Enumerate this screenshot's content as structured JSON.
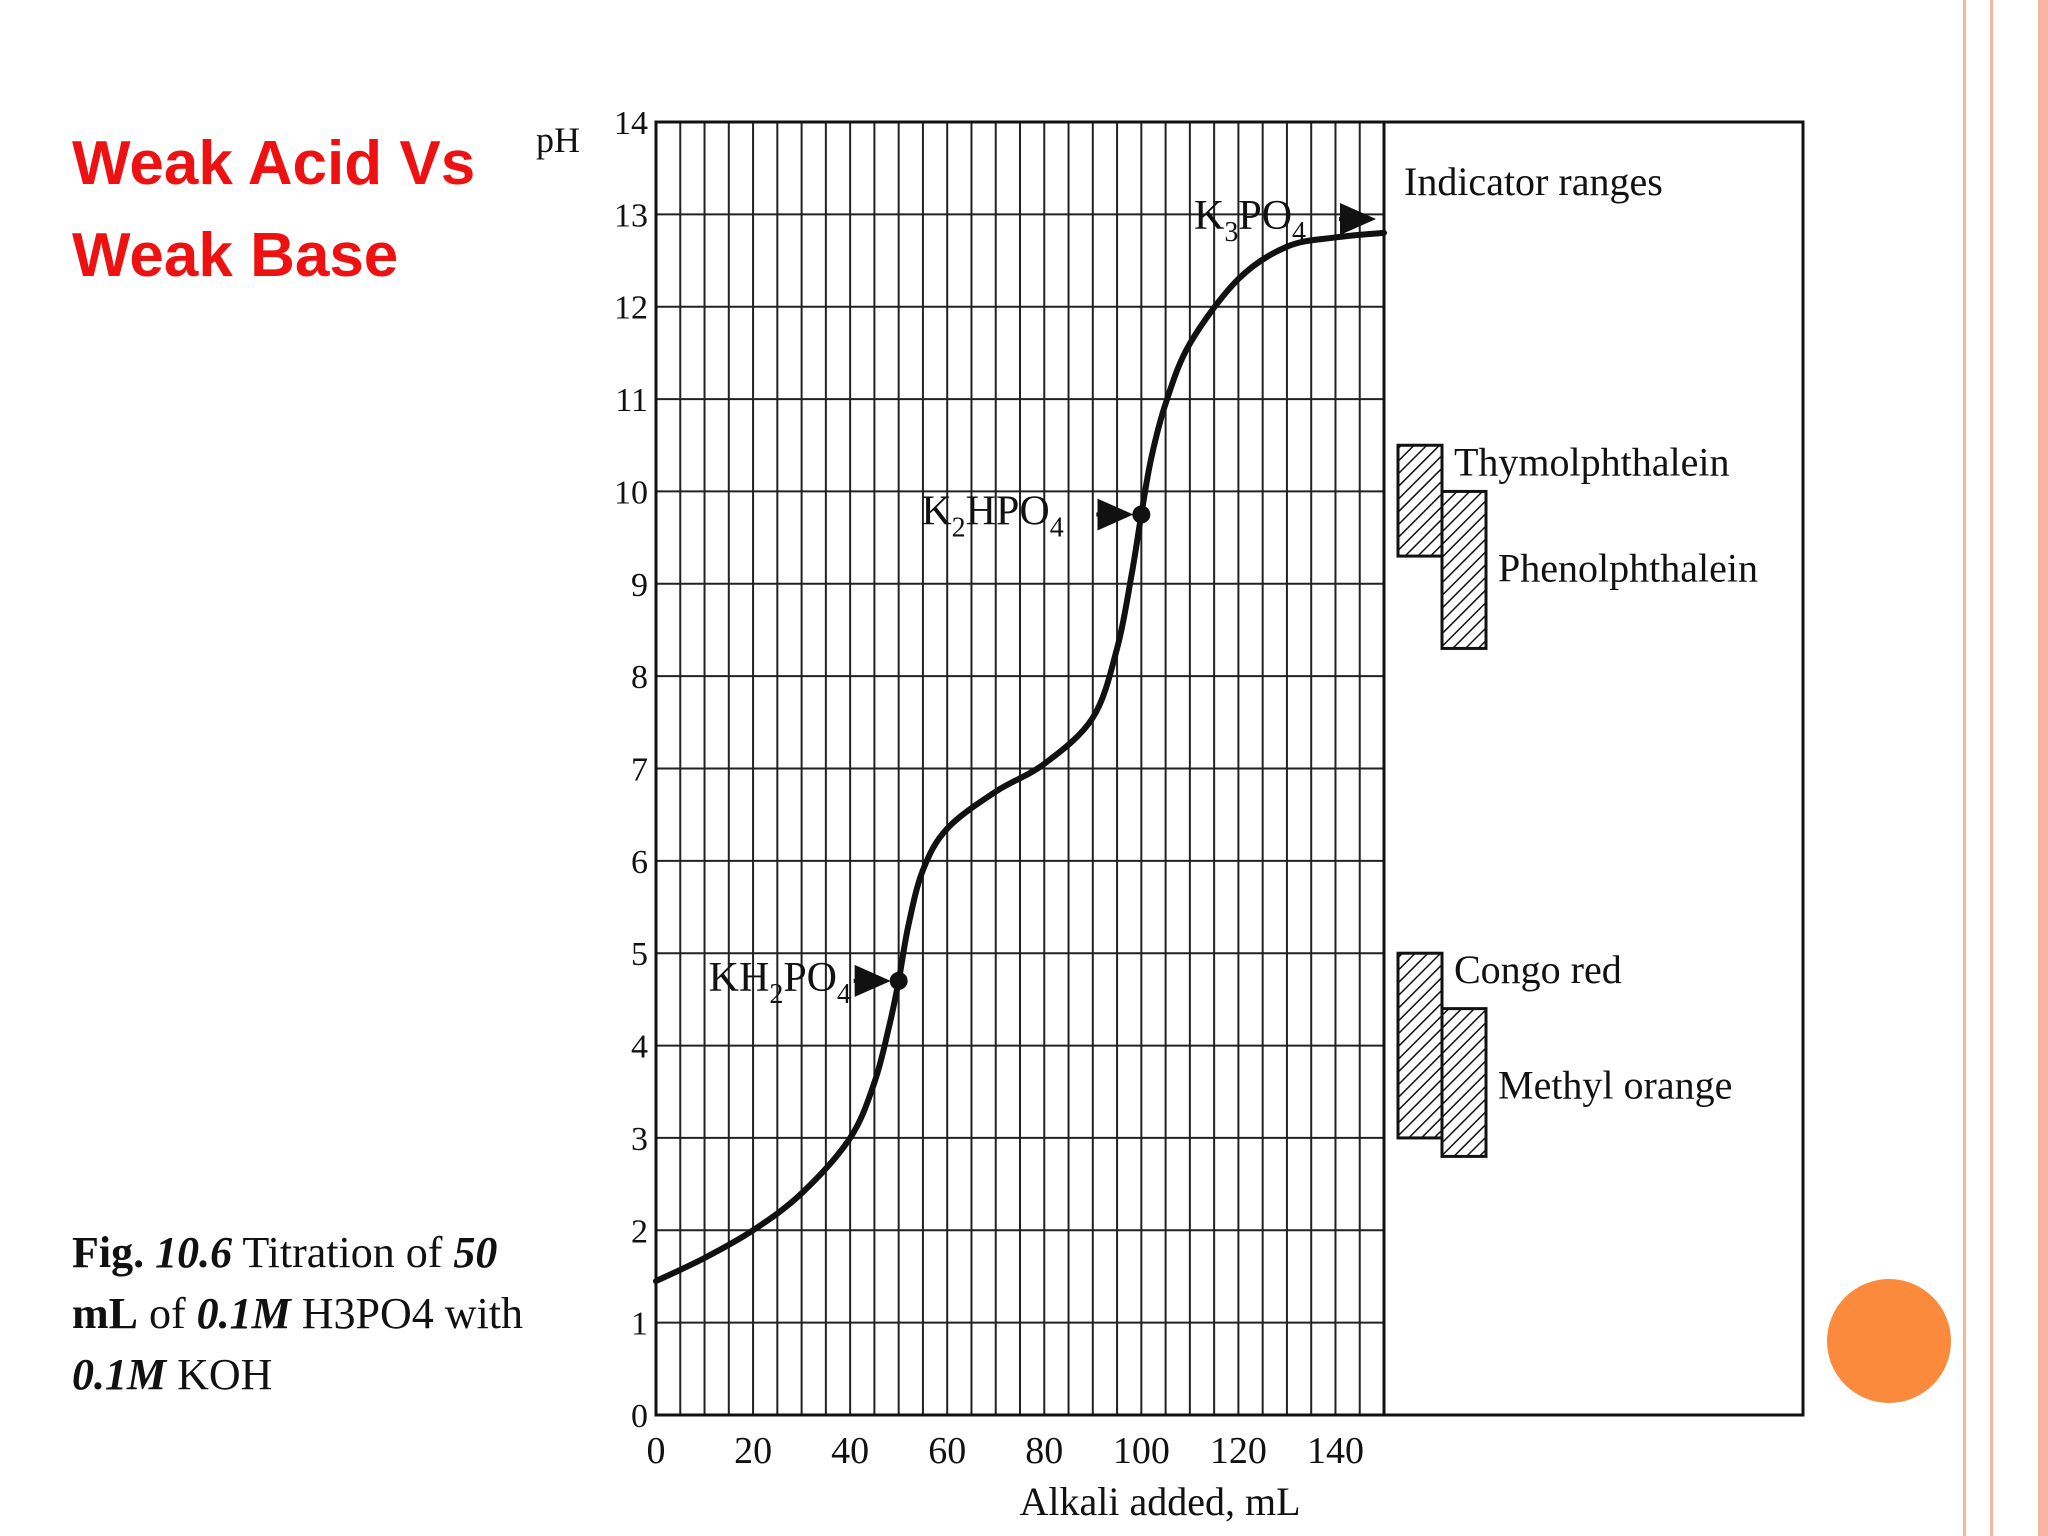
{
  "slide": {
    "title_line1": "Weak Acid Vs",
    "title_line2": "Weak Base",
    "title_color": "#ee1111",
    "accent_color": "#fb8a3c",
    "border_color": "#f7b4a0"
  },
  "caption": {
    "fig": "Fig.",
    "num": "10.6",
    "t1": " Titration of ",
    "vol": "50",
    "unit": "mL",
    "t2": " of ",
    "conc1": "0.1M",
    "t3": " H3PO4 with ",
    "conc2": "0.1M",
    "t4": " KOH"
  },
  "chart_data": {
    "type": "line",
    "xlabel": "Alkali added,  mL",
    "ylabel": "pH",
    "xlim": [
      0,
      150
    ],
    "ylim": [
      0,
      14
    ],
    "x_ticks": [
      0,
      20,
      40,
      60,
      80,
      100,
      120,
      140
    ],
    "y_ticks": [
      0,
      1,
      2,
      3,
      4,
      5,
      6,
      7,
      8,
      9,
      10,
      11,
      12,
      13,
      14
    ],
    "grid": true,
    "series": [
      {
        "x": [
          0,
          10,
          20,
          30,
          40,
          45,
          48,
          50,
          52,
          55,
          60,
          70,
          80,
          90,
          95,
          98,
          100,
          102,
          105,
          110,
          120,
          130,
          140,
          150
        ],
        "y": [
          1.45,
          1.7,
          2.0,
          2.4,
          3.0,
          3.6,
          4.2,
          4.7,
          5.3,
          5.9,
          6.35,
          6.75,
          7.05,
          7.55,
          8.3,
          9.1,
          9.75,
          10.35,
          10.95,
          11.6,
          12.3,
          12.65,
          12.75,
          12.8
        ]
      }
    ],
    "annotations": [
      {
        "label": "KH",
        "sub1": "2",
        "mid": "PO",
        "sub2": "4",
        "x": 50,
        "y": 4.7,
        "marker": true
      },
      {
        "label": "K",
        "sub1": "2",
        "mid": "HPO",
        "sub2": "4",
        "x": 100,
        "y": 9.75,
        "marker": true
      },
      {
        "label": "K",
        "sub1": "3",
        "mid": "PO",
        "sub2": "4",
        "x": 150,
        "y": 12.95,
        "marker": false
      }
    ],
    "indicator_panel": {
      "title": "Indicator ranges",
      "indicators": [
        {
          "name": "Thymolphthalein",
          "low": 9.3,
          "high": 10.5,
          "column": 0
        },
        {
          "name": "Phenolphthalein",
          "low": 8.3,
          "high": 10.0,
          "column": 1
        },
        {
          "name": "Congo red",
          "low": 3.0,
          "high": 5.0,
          "column": 0
        },
        {
          "name": "Methyl orange",
          "low": 2.8,
          "high": 4.4,
          "column": 1
        }
      ]
    }
  }
}
